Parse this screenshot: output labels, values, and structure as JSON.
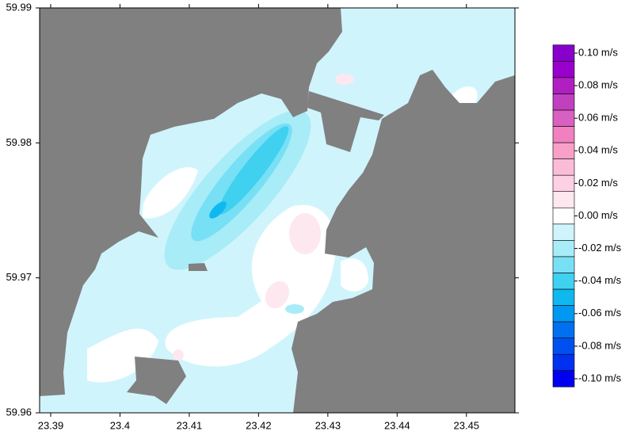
{
  "chart_data": {
    "type": "contour",
    "xlim": [
      23.3884,
      23.457
    ],
    "ylim": [
      59.96,
      59.99
    ],
    "xticks": [
      23.39,
      23.4,
      23.41,
      23.42,
      23.43,
      23.44,
      23.45
    ],
    "yticks": [
      59.96,
      59.97,
      59.98,
      59.99
    ],
    "land_color": "#808080",
    "colorbar": {
      "levels": [
        -0.1,
        -0.09,
        -0.08,
        -0.07,
        -0.06,
        -0.05,
        -0.04,
        -0.03,
        -0.02,
        -0.01,
        0,
        0.01,
        0.02,
        0.03,
        0.04,
        0.05,
        0.06,
        0.07,
        0.08,
        0.09,
        0.1
      ],
      "colors": [
        "#0000f0",
        "#0030f0",
        "#0050f0",
        "#0070f0",
        "#0098f0",
        "#10b8f0",
        "#40d0f0",
        "#78e0f4",
        "#a8ecf8",
        "#d0f4fc",
        "#ffffff",
        "#fee8f0",
        "#fdd0e4",
        "#fbbcd8",
        "#f8a0c8",
        "#f080c0",
        "#d860c0",
        "#c040c0",
        "#b020c0",
        "#9a00cc",
        "#8800cc"
      ],
      "ticks": [
        {
          "value": 0.1,
          "label": "0.10 m/s"
        },
        {
          "value": 0.08,
          "label": "0.08 m/s"
        },
        {
          "value": 0.06,
          "label": "0.06 m/s"
        },
        {
          "value": 0.04,
          "label": "0.04 m/s"
        },
        {
          "value": 0.02,
          "label": "0.02 m/s"
        },
        {
          "value": 0,
          "label": "0.00 m/s"
        },
        {
          "value": -0.02,
          "label": "-0.02 m/s"
        },
        {
          "value": -0.04,
          "label": "-0.04 m/s"
        },
        {
          "value": -0.06,
          "label": "-0.06 m/s"
        },
        {
          "value": -0.08,
          "label": "-0.08 m/s"
        },
        {
          "value": -0.1,
          "label": "-0.10 m/s"
        }
      ]
    }
  }
}
